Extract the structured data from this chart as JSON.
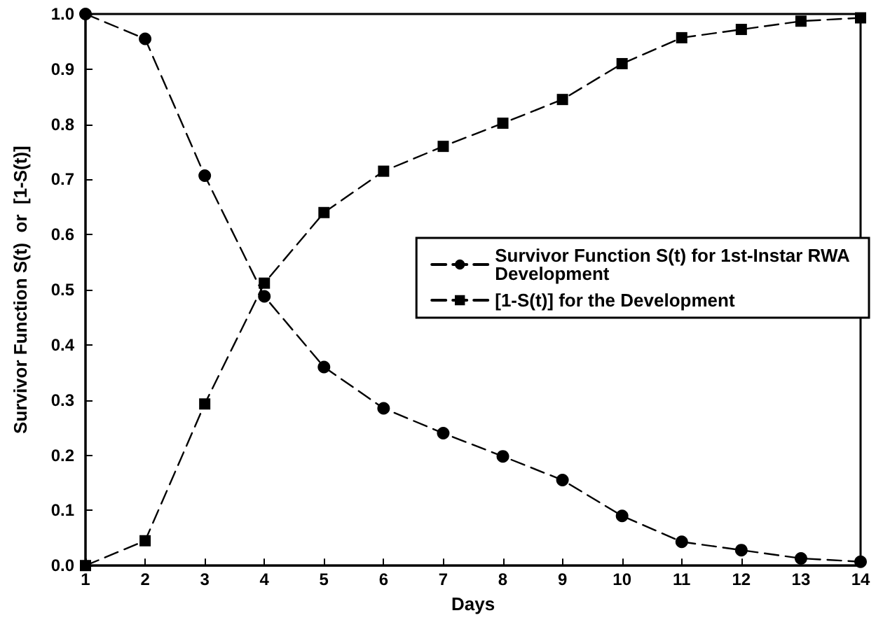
{
  "chart_data": {
    "type": "line",
    "xlabel": "Days",
    "ylabel": "Survivor Function S(t)  or  [1-S(t)]",
    "x": [
      1,
      2,
      3,
      4,
      5,
      6,
      7,
      8,
      9,
      10,
      11,
      12,
      13,
      14
    ],
    "series": [
      {
        "name": "Survivor Function S(t) for 1st-Instar RWA Development",
        "color": "#000000",
        "marker": "circle",
        "values": [
          1.0,
          0.955,
          0.707,
          0.488,
          0.36,
          0.285,
          0.24,
          0.198,
          0.155,
          0.09,
          0.043,
          0.028,
          0.013,
          0.007
        ]
      },
      {
        "name": "[1-S(t)] for the Development",
        "color": "#000000",
        "marker": "square",
        "values": [
          0.0,
          0.045,
          0.293,
          0.512,
          0.64,
          0.715,
          0.76,
          0.802,
          0.845,
          0.91,
          0.957,
          0.972,
          0.987,
          0.993
        ]
      }
    ],
    "xlim": [
      1,
      14
    ],
    "xticks": [
      1,
      2,
      3,
      4,
      5,
      6,
      7,
      8,
      9,
      10,
      11,
      12,
      13,
      14
    ],
    "ylim": [
      0,
      1
    ],
    "yticks": [
      {
        "value": 0,
        "label": "0.0"
      },
      0.1,
      0.2,
      0.3,
      0.4,
      0.5,
      0.6,
      0.7,
      0.8,
      0.9,
      {
        "value": 1,
        "label": "1.0"
      }
    ],
    "line_style": "dashed",
    "legend": "right",
    "grid": false
  }
}
